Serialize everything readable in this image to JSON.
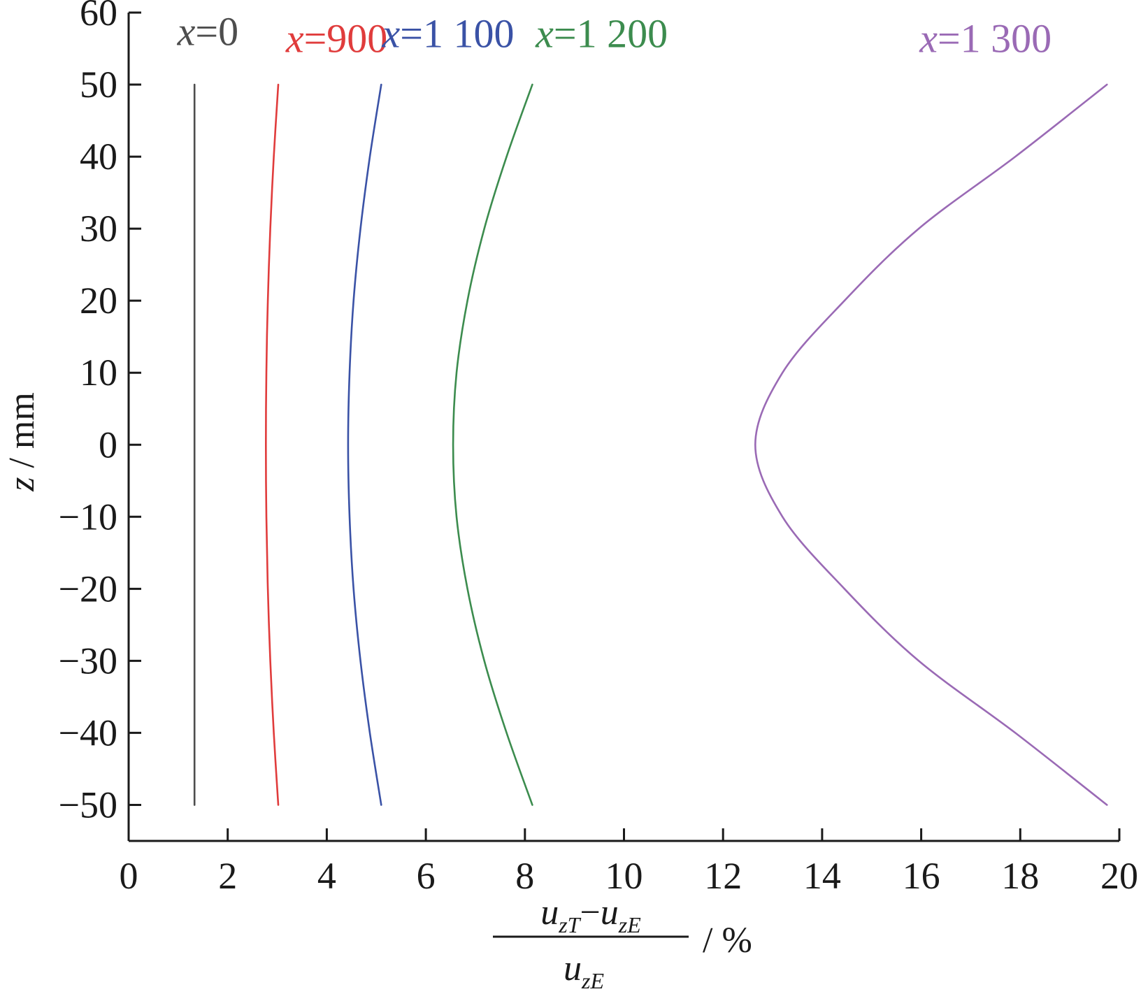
{
  "chart_data": {
    "type": "line",
    "title": "",
    "xlabel": {
      "numerator_var": "u",
      "numerator_sub": "zT",
      "numerator_minus": "−",
      "numerator_var2": "u",
      "numerator_sub2": "zE",
      "denominator_var": "u",
      "denominator_sub": "zE",
      "unit": "/ %"
    },
    "ylabel": {
      "var": "z",
      "unit": "/ mm"
    },
    "xlim": [
      0,
      20
    ],
    "ylim": [
      -55,
      60
    ],
    "x_ticks": [
      0,
      2,
      4,
      6,
      8,
      10,
      12,
      14,
      16,
      18,
      20
    ],
    "y_ticks": [
      -50,
      -40,
      -30,
      -20,
      -10,
      0,
      10,
      20,
      30,
      40,
      50,
      60
    ],
    "x_tick_labels": [
      "0",
      "2",
      "4",
      "6",
      "8",
      "10",
      "12",
      "14",
      "16",
      "18",
      "20"
    ],
    "y_tick_labels": [
      "−50",
      "−40",
      "−30",
      "−20",
      "−10",
      "0",
      "10",
      "20",
      "30",
      "40",
      "50",
      "60"
    ],
    "grid": false,
    "series": [
      {
        "name": "x=0",
        "label_var": "x",
        "label_rest": "=0",
        "color": "#4d4d4d",
        "points": [
          [
            1.33,
            -50
          ],
          [
            1.33,
            50
          ]
        ]
      },
      {
        "name": "x=900",
        "label_var": "x",
        "label_rest": "=900",
        "color": "#e03c3c",
        "points": [
          [
            3.02,
            -50
          ],
          [
            2.93,
            -40
          ],
          [
            2.86,
            -30
          ],
          [
            2.81,
            -20
          ],
          [
            2.78,
            -10
          ],
          [
            2.77,
            0
          ],
          [
            2.78,
            10
          ],
          [
            2.81,
            20
          ],
          [
            2.86,
            30
          ],
          [
            2.93,
            40
          ],
          [
            3.02,
            50
          ]
        ]
      },
      {
        "name": "x=1 100",
        "label_var": "x",
        "label_rest": "=1 100",
        "color": "#3a52a6",
        "points": [
          [
            5.1,
            -50
          ],
          [
            4.87,
            -40
          ],
          [
            4.68,
            -30
          ],
          [
            4.54,
            -20
          ],
          [
            4.46,
            -10
          ],
          [
            4.43,
            0
          ],
          [
            4.46,
            10
          ],
          [
            4.54,
            20
          ],
          [
            4.68,
            30
          ],
          [
            4.87,
            40
          ],
          [
            5.1,
            50
          ]
        ]
      },
      {
        "name": "x=1 200",
        "label_var": "x",
        "label_rest": "=1 200",
        "color": "#3c8c4e",
        "points": [
          [
            8.15,
            -50
          ],
          [
            7.63,
            -40
          ],
          [
            7.18,
            -30
          ],
          [
            6.84,
            -20
          ],
          [
            6.62,
            -10
          ],
          [
            6.55,
            0
          ],
          [
            6.62,
            10
          ],
          [
            6.84,
            20
          ],
          [
            7.18,
            30
          ],
          [
            7.63,
            40
          ],
          [
            8.15,
            50
          ]
        ]
      },
      {
        "name": "x=1 300",
        "label_var": "x",
        "label_rest": "=1 300",
        "color": "#9a6ab5",
        "points": [
          [
            19.75,
            -50
          ],
          [
            17.9,
            -40
          ],
          [
            15.95,
            -30
          ],
          [
            14.45,
            -20
          ],
          [
            13.2,
            -10
          ],
          [
            12.65,
            0
          ],
          [
            13.2,
            10
          ],
          [
            14.45,
            20
          ],
          [
            15.95,
            30
          ],
          [
            17.9,
            40
          ],
          [
            19.75,
            50
          ]
        ]
      }
    ]
  }
}
